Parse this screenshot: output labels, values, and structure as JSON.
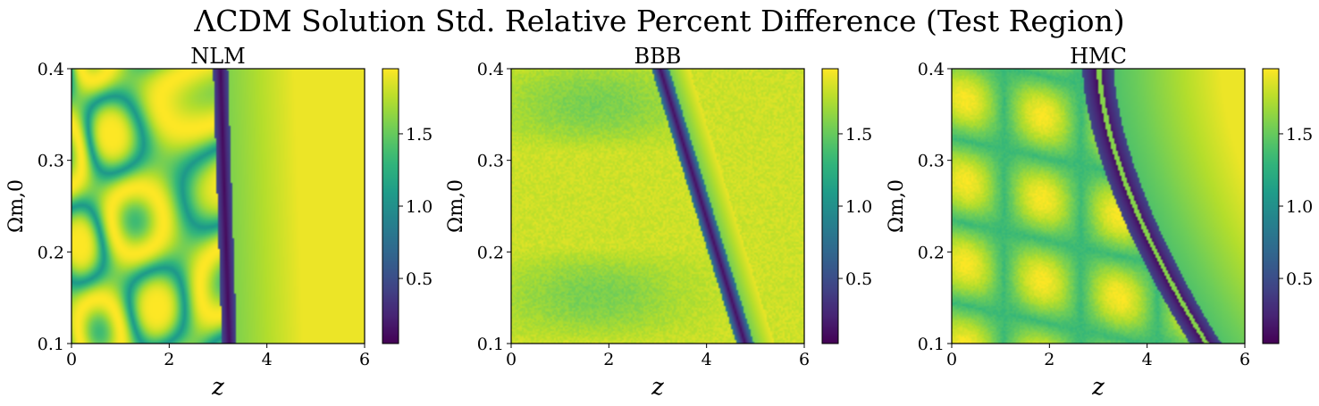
{
  "figure": {
    "suptitle": "ΛCDM Solution Std. Relative Percent Difference (Test Region)"
  },
  "chart_data": [
    {
      "type": "heatmap",
      "title": "NLM",
      "xlabel": "z",
      "ylabel": "Ωm,0",
      "xlim": [
        0,
        6
      ],
      "ylim": [
        0.1,
        0.4
      ],
      "xticks": [
        "0",
        "2",
        "4",
        "6"
      ],
      "yticks": [
        "0.1",
        "0.2",
        "0.3",
        "0.4"
      ],
      "colormap": "viridis",
      "colorbar_range": [
        0.05,
        1.95
      ],
      "colorbar_ticks": [
        "0.5",
        "1.0",
        "1.5"
      ],
      "feature_description": "Ridge near z≈3.2 with oscillatory pattern for z<3; saturated (~1.9) for z>3.3; minimum trough just right of the ridge."
    },
    {
      "type": "heatmap",
      "title": "BBB",
      "xlabel": "z",
      "ylabel": "Ωm,0",
      "xlim": [
        0,
        6
      ],
      "ylim": [
        0.1,
        0.4
      ],
      "xticks": [
        "0",
        "2",
        "4",
        "6"
      ],
      "yticks": [
        "0.1",
        "0.2",
        "0.3",
        "0.4"
      ],
      "colormap": "viridis",
      "colorbar_range": [
        0.05,
        1.95
      ],
      "colorbar_ticks": [
        "0.5",
        "1.0",
        "1.5"
      ],
      "feature_description": "Mostly high (~1.8) noisy field; diagonal low band from z≈3.1 at top to z≈4.8 at bottom."
    },
    {
      "type": "heatmap",
      "title": "HMC",
      "xlabel": "z",
      "ylabel": "Ωm,0",
      "xlim": [
        0,
        6
      ],
      "ylim": [
        0.1,
        0.4
      ],
      "xticks": [
        "0",
        "2",
        "4",
        "6"
      ],
      "yticks": [
        "0.1",
        "0.2",
        "0.3",
        "0.4"
      ],
      "colormap": "viridis",
      "colorbar_range": [
        0.05,
        1.95
      ],
      "colorbar_ticks": [
        "0.5",
        "1.0",
        "1.5"
      ],
      "feature_description": "Lobed oscillatory structure for z<3; dark trough curving from z≈3 at top to z≈5.2 at bottom with bright thin line inside."
    }
  ]
}
